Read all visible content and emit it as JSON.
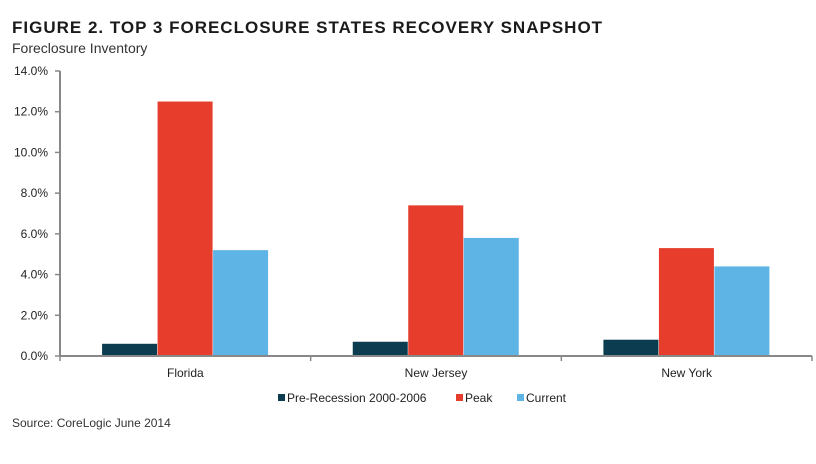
{
  "chart_data": {
    "type": "bar",
    "title": "FIGURE 2. TOP 3 FORECLOSURE STATES RECOVERY SNAPSHOT",
    "subtitle": "Foreclosure Inventory",
    "source": "Source: CoreLogic June 2014",
    "categories": [
      "Florida",
      "New Jersey",
      "New York"
    ],
    "series": [
      {
        "name": "Pre-Recession 2000-2006",
        "color": "#0b3c50",
        "values": [
          0.6,
          0.7,
          0.8
        ]
      },
      {
        "name": "Peak",
        "color": "#e63d2c",
        "values": [
          12.5,
          7.4,
          5.3
        ]
      },
      {
        "name": "Current",
        "color": "#5db4e5",
        "values": [
          5.2,
          5.8,
          4.4
        ]
      }
    ],
    "ylim": [
      0,
      14
    ],
    "yticks": [
      "0.0%",
      "2.0%",
      "4.0%",
      "6.0%",
      "8.0%",
      "10.0%",
      "12.0%",
      "14.0%"
    ],
    "legend_position": "bottom"
  }
}
